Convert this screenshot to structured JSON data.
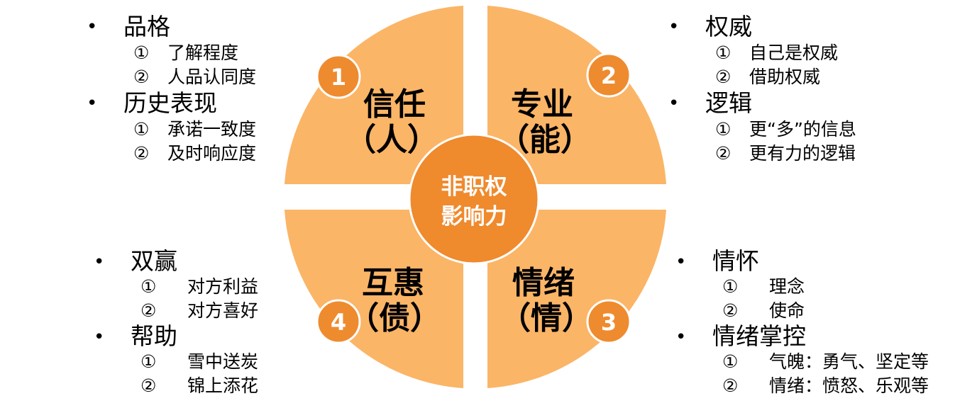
{
  "colors": {
    "quadrant_fill": "#FBB567",
    "badge_fill": "#EE8B2F",
    "center_fill": "#EF8A2D",
    "white": "#FFFFFF",
    "text": "#000000"
  },
  "center": {
    "line1": "非职权",
    "line2": "影响力"
  },
  "quadrants": [
    {
      "position": "top-left",
      "badge": "1",
      "title": "信任",
      "subtitle": "（人）"
    },
    {
      "position": "top-right",
      "badge": "2",
      "title": "专业",
      "subtitle": "（能）"
    },
    {
      "position": "bottom-right",
      "badge": "3",
      "title": "情绪",
      "subtitle": "（情）"
    },
    {
      "position": "bottom-left",
      "badge": "4",
      "title": "互惠",
      "subtitle": "（债）"
    }
  ],
  "lists": {
    "top_left": [
      {
        "title": "品格",
        "subs": [
          {
            "num": "①",
            "text": "了解程度"
          },
          {
            "num": "②",
            "text": "人品认同度"
          }
        ]
      },
      {
        "title": "历史表现",
        "subs": [
          {
            "num": "①",
            "text": "承诺一致度"
          },
          {
            "num": "②",
            "text": "及时响应度"
          }
        ]
      }
    ],
    "top_right": [
      {
        "title": "权威",
        "subs": [
          {
            "num": "①",
            "text": "自己是权威"
          },
          {
            "num": "②",
            "text": "借助权威"
          }
        ]
      },
      {
        "title": "逻辑",
        "subs": [
          {
            "num": "①",
            "text": "更“多”的信息"
          },
          {
            "num": "②",
            "text": "更有力的逻辑"
          }
        ]
      }
    ],
    "bottom_left": [
      {
        "title": "双赢",
        "subs": [
          {
            "num": "①",
            "text": "对方利益"
          },
          {
            "num": "②",
            "text": "对方喜好"
          }
        ]
      },
      {
        "title": "帮助",
        "subs": [
          {
            "num": "①",
            "text": "雪中送炭"
          },
          {
            "num": "②",
            "text": "锦上添花"
          }
        ]
      }
    ],
    "bottom_right": [
      {
        "title": "情怀",
        "subs": [
          {
            "num": "①",
            "text": "理念"
          },
          {
            "num": "②",
            "text": "使命"
          }
        ]
      },
      {
        "title": "情绪掌控",
        "subs": [
          {
            "num": "①",
            "text": "气魄：勇气、坚定等"
          },
          {
            "num": "②",
            "text": "情绪：愤怒、乐观等"
          }
        ]
      }
    ]
  }
}
